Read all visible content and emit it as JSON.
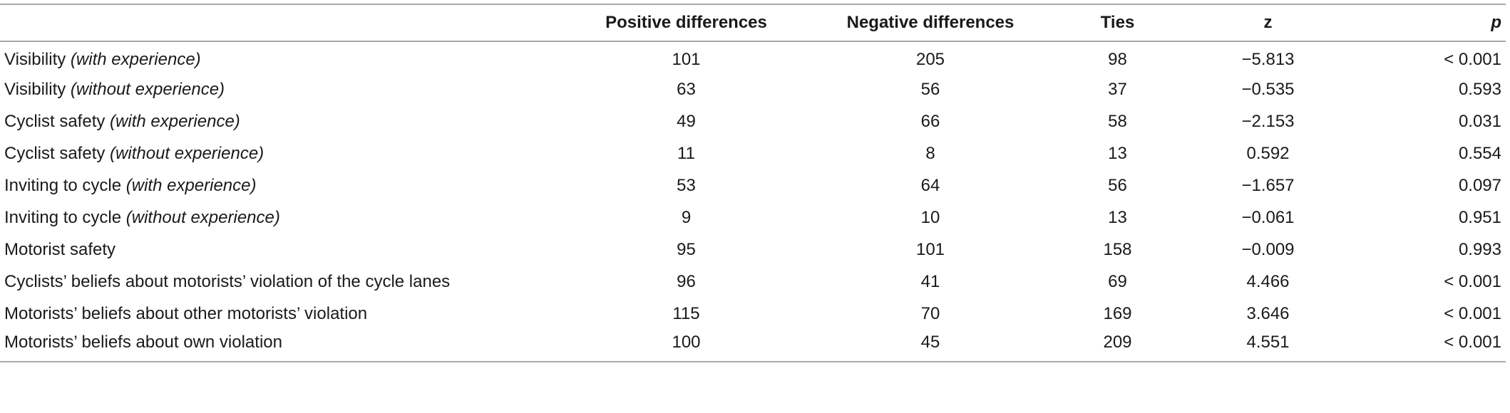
{
  "table": {
    "headers": [
      "",
      "Positive differences",
      "Negative differences",
      "Ties",
      "z",
      "p"
    ],
    "rows": [
      {
        "label": "Visibility",
        "qualifier": "(with experience)",
        "positive": "101",
        "negative": "205",
        "ties": "98",
        "z": "−5.813",
        "p": "< 0.001"
      },
      {
        "label": "Visibility",
        "qualifier": "(without experience)",
        "positive": "63",
        "negative": "56",
        "ties": "37",
        "z": "−0.535",
        "p": "0.593"
      },
      {
        "label": "Cyclist safety",
        "qualifier": "(with experience)",
        "positive": "49",
        "negative": "66",
        "ties": "58",
        "z": "−2.153",
        "p": "0.031"
      },
      {
        "label": "Cyclist safety",
        "qualifier": "(without experience)",
        "positive": "11",
        "negative": "8",
        "ties": "13",
        "z": "0.592",
        "p": "0.554"
      },
      {
        "label": "Inviting to cycle",
        "qualifier": "(with experience)",
        "positive": "53",
        "negative": "64",
        "ties": "56",
        "z": "−1.657",
        "p": "0.097"
      },
      {
        "label": "Inviting to cycle",
        "qualifier": "(without experience)",
        "positive": "9",
        "negative": "10",
        "ties": "13",
        "z": "−0.061",
        "p": "0.951"
      },
      {
        "label": "Motorist safety",
        "qualifier": "",
        "positive": "95",
        "negative": "101",
        "ties": "158",
        "z": "−0.009",
        "p": "0.993"
      },
      {
        "label": "Cyclists’ beliefs about motorists’ violation of the cycle lanes",
        "qualifier": "",
        "positive": "96",
        "negative": "41",
        "ties": "69",
        "z": "4.466",
        "p": "< 0.001"
      },
      {
        "label": "Motorists’ beliefs about other motorists’ violation",
        "qualifier": "",
        "positive": "115",
        "negative": "70",
        "ties": "169",
        "z": "3.646",
        "p": "< 0.001"
      },
      {
        "label": "Motorists’ beliefs about own violation",
        "qualifier": "",
        "positive": "100",
        "negative": "45",
        "ties": "209",
        "z": "4.551",
        "p": "< 0.001"
      }
    ]
  }
}
